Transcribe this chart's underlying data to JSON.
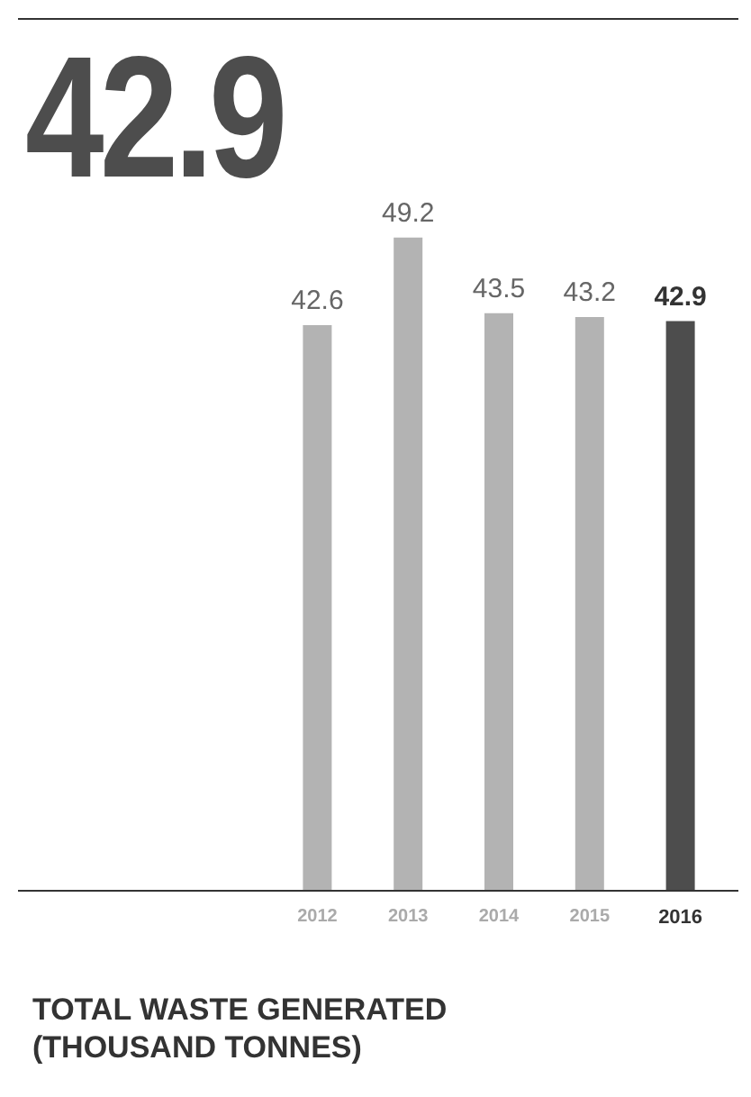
{
  "chart_data": {
    "type": "bar",
    "title": "TOTAL WASTE GENERATED (THOUSAND TONNES)",
    "annotations": [
      "42.9"
    ],
    "categories": [
      "2012",
      "2013",
      "2014",
      "2015",
      "2016"
    ],
    "values": [
      42.6,
      49.2,
      43.5,
      43.2,
      42.9
    ],
    "colors": [
      "#b3b3b3",
      "#b3b3b3",
      "#b3b3b3",
      "#b3b3b3",
      "#4d4d4d"
    ],
    "data_labels": true
  }
}
